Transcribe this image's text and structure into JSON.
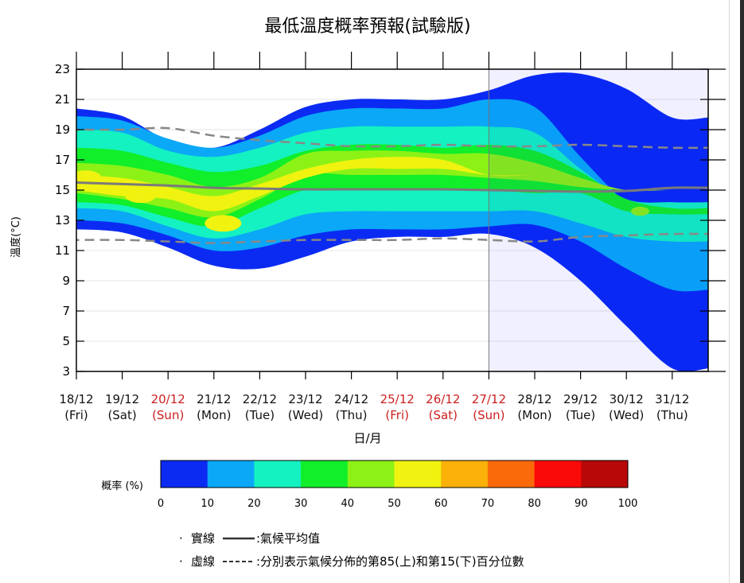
{
  "chart_data": {
    "type": "heatmap",
    "title": "最低溫度概率預報(試驗版)",
    "ylabel": "溫度(°C)",
    "xlabel": "日/月",
    "ylim": [
      3,
      23
    ],
    "yticks": [
      3,
      5,
      7,
      9,
      11,
      13,
      15,
      17,
      19,
      21,
      23
    ],
    "grid": true,
    "categories": [
      {
        "date": "18/12",
        "day": "(Fri)",
        "weekend": false
      },
      {
        "date": "19/12",
        "day": "(Sat)",
        "weekend": false
      },
      {
        "date": "20/12",
        "day": "(Sun)",
        "weekend": true
      },
      {
        "date": "21/12",
        "day": "(Mon)",
        "weekend": false
      },
      {
        "date": "22/12",
        "day": "(Tue)",
        "weekend": false
      },
      {
        "date": "23/12",
        "day": "(Wed)",
        "weekend": false
      },
      {
        "date": "24/12",
        "day": "(Thu)",
        "weekend": false
      },
      {
        "date": "25/12",
        "day": "(Fri)",
        "weekend": true
      },
      {
        "date": "26/12",
        "day": "(Sat)",
        "weekend": true
      },
      {
        "date": "27/12",
        "day": "(Sun)",
        "weekend": true
      },
      {
        "date": "28/12",
        "day": "(Mon)",
        "weekend": false
      },
      {
        "date": "29/12",
        "day": "(Tue)",
        "weekend": false
      },
      {
        "date": "30/12",
        "day": "(Wed)",
        "weekend": false
      },
      {
        "date": "31/12",
        "day": "(Thu)",
        "weekend": false
      }
    ],
    "divider_after": "27/12",
    "probability_bands": [
      {
        "prob_min": 0,
        "lower": [
          12.4,
          12.2,
          11.2,
          10.0,
          9.8,
          10.6,
          11.6,
          11.9,
          11.9,
          12.1,
          11.2,
          9.0,
          6.0,
          3.2
        ],
        "upper": [
          20.4,
          19.9,
          18.3,
          17.8,
          19.0,
          20.5,
          21.0,
          21.0,
          21.0,
          21.6,
          22.6,
          22.7,
          21.7,
          19.8
        ]
      },
      {
        "prob_min": 10,
        "lower": [
          13.0,
          12.8,
          12.0,
          11.0,
          11.2,
          12.0,
          12.4,
          12.4,
          12.4,
          12.6,
          12.7,
          11.6,
          9.8,
          8.4
        ],
        "upper": [
          19.9,
          19.6,
          18.4,
          17.8,
          18.6,
          19.9,
          20.4,
          20.4,
          20.4,
          21.0,
          20.5,
          17.2,
          14.2,
          12.8
        ]
      },
      {
        "prob_min": 20,
        "lower": [
          13.8,
          13.6,
          12.6,
          11.8,
          12.4,
          13.4,
          13.6,
          13.6,
          13.6,
          13.6,
          13.6,
          12.8,
          11.9,
          11.6
        ],
        "upper": [
          19.0,
          18.8,
          17.6,
          17.2,
          17.8,
          18.8,
          19.2,
          19.2,
          19.2,
          19.2,
          18.8,
          16.4,
          14.4,
          14.2
        ]
      },
      {
        "prob_min": 30,
        "lower": [
          14.2,
          14.0,
          13.2,
          12.6,
          13.8,
          15.0,
          15.0,
          15.0,
          15.0,
          15.0,
          14.8,
          14.8,
          13.6,
          13.4
        ],
        "upper": [
          17.8,
          17.6,
          16.8,
          16.2,
          16.6,
          17.6,
          18.0,
          18.0,
          17.8,
          18.0,
          17.6,
          16.2,
          14.4,
          13.8
        ]
      },
      {
        "prob_min": 40,
        "lower": [
          14.8,
          14.4,
          13.8,
          13.2,
          14.4,
          16.0,
          16.0,
          16.0,
          16.0,
          15.8,
          15.6,
          15.2,
          15.0,
          15.0
        ],
        "upper": [
          16.8,
          16.6,
          16.0,
          15.2,
          15.8,
          17.4,
          17.6,
          17.6,
          17.4,
          17.4,
          16.8,
          15.8,
          15.0,
          15.0
        ]
      },
      {
        "prob_min": 50,
        "lower": [
          15.0,
          14.6,
          14.4,
          13.6,
          14.6,
          15.8,
          16.4,
          16.4,
          16.4,
          16.0,
          16.0,
          16.0,
          16.0,
          16.0
        ],
        "upper": [
          16.0,
          15.8,
          15.2,
          14.6,
          15.4,
          16.4,
          17.0,
          17.2,
          17.0,
          16.0,
          16.0,
          16.0,
          16.0,
          16.0
        ]
      }
    ],
    "blobs": [
      {
        "prob_min": 50,
        "x": 1.4,
        "y": 14.7,
        "rx": 0.35,
        "ry": 0.55
      },
      {
        "prob_min": 50,
        "x": 0.2,
        "y": 15.8,
        "rx": 0.35,
        "ry": 0.5
      },
      {
        "prob_min": 50,
        "x": 3.2,
        "y": 12.8,
        "rx": 0.4,
        "ry": 0.55
      },
      {
        "prob_min": 40,
        "x": 12.3,
        "y": 13.6,
        "rx": 0.2,
        "ry": 0.3
      }
    ],
    "series": [
      {
        "name": "氣候平均值",
        "style": "solid",
        "values": [
          15.5,
          15.4,
          15.3,
          15.15,
          15.1,
          15.05,
          15.05,
          15.05,
          15.05,
          15.0,
          14.95,
          14.9,
          14.95,
          15.15
        ]
      },
      {
        "name": "第85(上)",
        "style": "dashed",
        "values": [
          19.0,
          19.0,
          19.1,
          18.6,
          18.3,
          18.1,
          17.9,
          17.9,
          18.0,
          17.9,
          17.9,
          18.0,
          17.9,
          17.8
        ]
      },
      {
        "name": "第15(下)",
        "style": "dashed",
        "values": [
          11.7,
          11.7,
          11.6,
          11.5,
          11.6,
          11.7,
          11.7,
          11.7,
          11.8,
          11.7,
          11.6,
          11.9,
          12.0,
          12.1
        ]
      }
    ],
    "colorbar": {
      "label": "概率 (%)",
      "ticks": [
        "0",
        "10",
        "20",
        "30",
        "40",
        "50",
        "60",
        "70",
        "80",
        "90",
        "100"
      ],
      "colors": [
        "#0b2bf3",
        "#0aa8f7",
        "#14f2c1",
        "#11ee2a",
        "#8cf216",
        "#eff30f",
        "#fbb10a",
        "#fb6a0a",
        "#fb0a0a",
        "#b80808"
      ]
    }
  },
  "legend": {
    "bullet": "·",
    "solid_label": "實線",
    "solid_desc": ":氣候平均值",
    "dashed_label": "虛線",
    "dashed_desc": ":分別表示氣候分佈的第85(上)和第15(下)百分位數"
  }
}
